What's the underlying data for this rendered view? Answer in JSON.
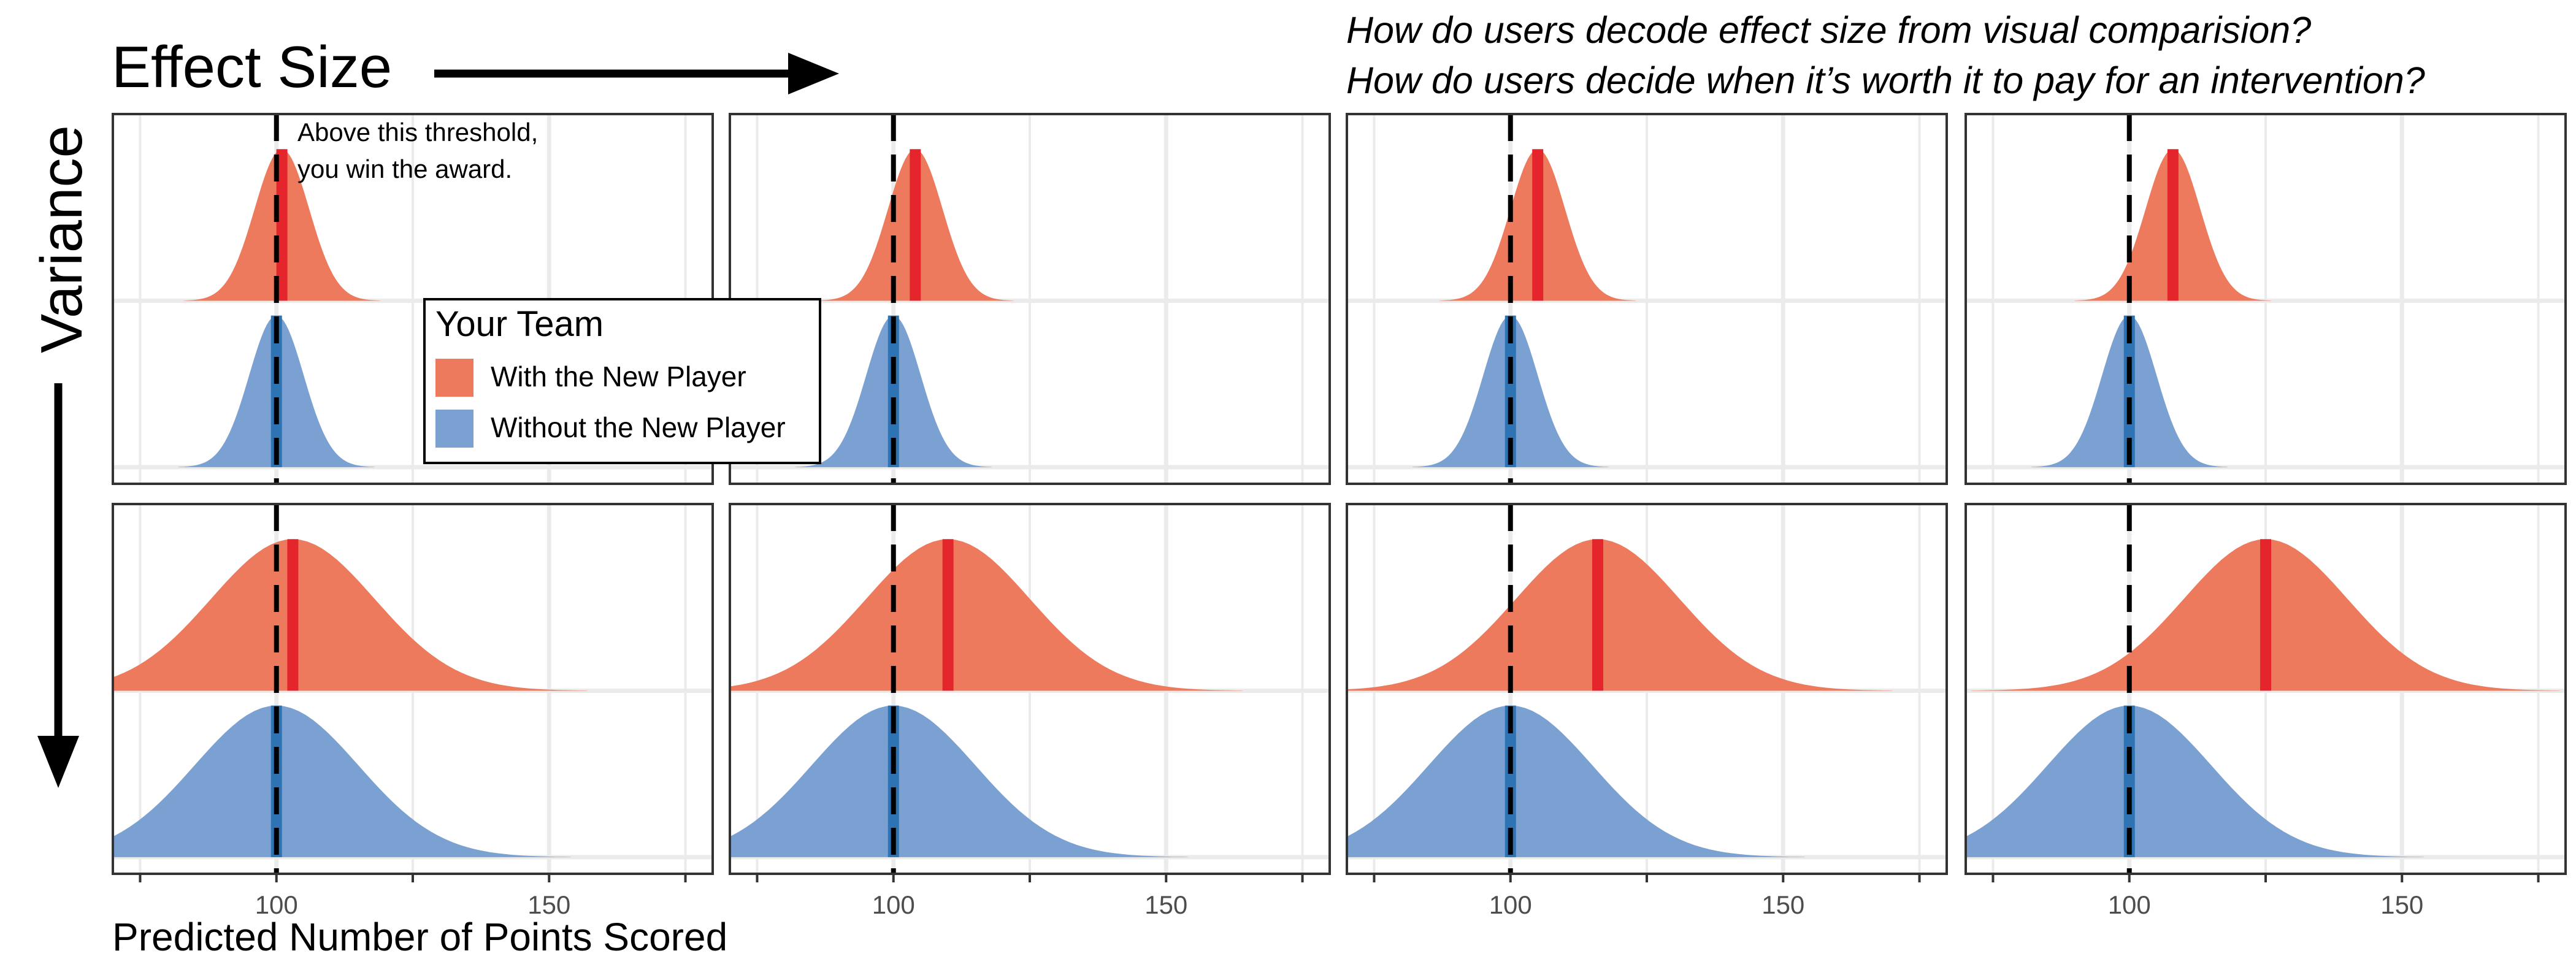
{
  "header": {
    "effect_size_label": "Effect Size",
    "variance_label": "Variance",
    "question_1": "How do users decode effect size from visual comparision?",
    "question_2": "How do users decide when it’s worth it to pay for an intervention?"
  },
  "annotation": {
    "line_1": "Above this threshold,",
    "line_2": "you win the award."
  },
  "legend": {
    "title": "Your Team",
    "items": [
      {
        "label": "With the New Player",
        "color": "#ed7a5c"
      },
      {
        "label": "Without the New Player",
        "color": "#7aa1d2"
      }
    ]
  },
  "x_axis": {
    "title": "Predicted Number of Points Scored",
    "tick_labels": [
      "100",
      "150"
    ]
  },
  "colors": {
    "with_fill": "#ed7a5c",
    "with_mean": "#e4252c",
    "without_fill": "#7aa1d2",
    "without_mean": "#2e74b5",
    "grid": "#ebebeb",
    "threshold": "#000000"
  },
  "chart_data": {
    "type": "area",
    "description_type": "faceted density ridges",
    "xlabel": "Predicted Number of Points Scored",
    "xlim": [
      70,
      180
    ],
    "x_ticks": [
      100,
      150
    ],
    "threshold": 100,
    "series_names": [
      "With the New Player",
      "Without the New Player"
    ],
    "rows": [
      {
        "panels": [
          {
            "with_mean": 101,
            "without_mean": 100,
            "sd": 5
          },
          {
            "with_mean": 104,
            "without_mean": 100,
            "sd": 5
          },
          {
            "with_mean": 105,
            "without_mean": 100,
            "sd": 5
          },
          {
            "with_mean": 108,
            "without_mean": 100,
            "sd": 5
          }
        ]
      },
      {
        "panels": [
          {
            "with_mean": 103,
            "without_mean": 100,
            "sd": 15
          },
          {
            "with_mean": 110,
            "without_mean": 100,
            "sd": 15
          },
          {
            "with_mean": 116,
            "without_mean": 100,
            "sd": 15
          },
          {
            "with_mean": 125,
            "without_mean": 100,
            "sd": 15
          }
        ]
      }
    ]
  }
}
